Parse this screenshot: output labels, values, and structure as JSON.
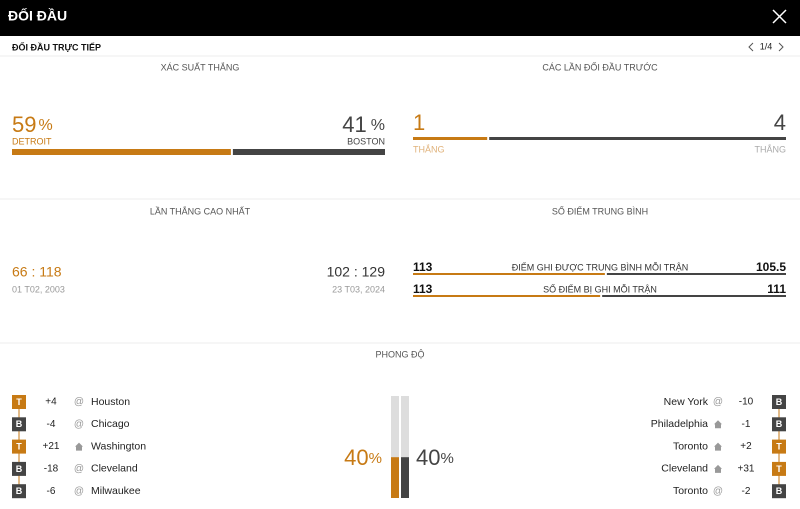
{
  "header": {
    "title": "ĐỐI ĐẦU"
  },
  "subheader": {
    "title": "ĐỐI ĐẦU TRỰC TIẾP",
    "pager": "1/4"
  },
  "win_probability": {
    "title": "XÁC SUẤT THẮNG",
    "unit": "%",
    "home": {
      "value": 59,
      "team": "DETROIT"
    },
    "away": {
      "value": 41,
      "team": "BOSTON"
    }
  },
  "head_to_head": {
    "title": "CÁC LẦN ĐỐI ĐẦU TRƯỚC",
    "home": {
      "value": 1,
      "label": "THẮNG"
    },
    "away": {
      "value": 4,
      "label": "THẮNG"
    }
  },
  "biggest_win": {
    "title": "LẦN THẮNG CAO NHẤT",
    "home": {
      "score": "66 : 118",
      "date": "01 T02, 2003"
    },
    "away": {
      "score": "102 : 129",
      "date": "23 T03, 2024"
    }
  },
  "average_points": {
    "title": "SỐ ĐIỂM TRUNG BÌNH",
    "rows": [
      {
        "label": "ĐIỂM GHI ĐƯỢC TRUNG BÌNH MỖI TRẬN",
        "home": 113,
        "away": 105.5
      },
      {
        "label": "SỐ ĐIỂM BỊ GHI MỖI TRẬN",
        "home": 113,
        "away": 111
      }
    ]
  },
  "form": {
    "title": "PHONG ĐỘ",
    "unit": "%",
    "home": {
      "percent": 40,
      "games": [
        {
          "result": "T",
          "diff": "+4",
          "venue": "@",
          "opponent": "Houston"
        },
        {
          "result": "B",
          "diff": "-4",
          "venue": "@",
          "opponent": "Chicago"
        },
        {
          "result": "T",
          "diff": "+21",
          "venue": null,
          "opponent": "Washington"
        },
        {
          "result": "B",
          "diff": "-18",
          "venue": "@",
          "opponent": "Cleveland"
        },
        {
          "result": "B",
          "diff": "-6",
          "venue": "@",
          "opponent": "Milwaukee"
        }
      ]
    },
    "away": {
      "percent": 40,
      "games": [
        {
          "result": "B",
          "diff": "-10",
          "venue": "@",
          "opponent": "New York"
        },
        {
          "result": "B",
          "diff": "-1",
          "venue": null,
          "opponent": "Philadelphia"
        },
        {
          "result": "T",
          "diff": "+2",
          "venue": null,
          "opponent": "Toronto"
        },
        {
          "result": "T",
          "diff": "+31",
          "venue": null,
          "opponent": "Cleveland"
        },
        {
          "result": "B",
          "diff": "-2",
          "venue": "@",
          "opponent": "Toronto"
        }
      ]
    }
  }
}
